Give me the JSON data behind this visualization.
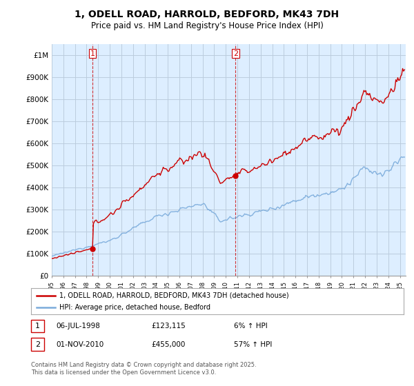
{
  "title": "1, ODELL ROAD, HARROLD, BEDFORD, MK43 7DH",
  "subtitle": "Price paid vs. HM Land Registry's House Price Index (HPI)",
  "ylim": [
    0,
    1050000
  ],
  "xlim_start": 1995.0,
  "xlim_end": 2025.5,
  "yticks": [
    0,
    100000,
    200000,
    300000,
    400000,
    500000,
    600000,
    700000,
    800000,
    900000,
    1000000
  ],
  "ytick_labels": [
    "£0",
    "£100K",
    "£200K",
    "£300K",
    "£400K",
    "£500K",
    "£600K",
    "£700K",
    "£800K",
    "£900K",
    "£1M"
  ],
  "house_color": "#cc0000",
  "hpi_color": "#7aabdb",
  "chart_bg": "#ddeeff",
  "sale1_date": 1998.51,
  "sale1_price": 123115,
  "sale1_label": "1",
  "sale2_date": 2010.84,
  "sale2_price": 455000,
  "sale2_label": "2",
  "legend_house": "1, ODELL ROAD, HARROLD, BEDFORD, MK43 7DH (detached house)",
  "legend_hpi": "HPI: Average price, detached house, Bedford",
  "footer": "Contains HM Land Registry data © Crown copyright and database right 2025.\nThis data is licensed under the Open Government Licence v3.0.",
  "background_color": "#ffffff",
  "grid_color": "#bbccdd",
  "title_fontsize": 10,
  "subtitle_fontsize": 8.5,
  "tick_fontsize": 7.5
}
